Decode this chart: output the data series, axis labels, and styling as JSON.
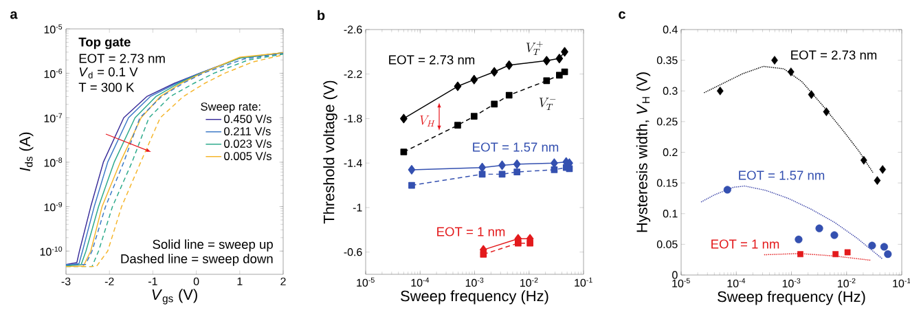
{
  "chart_data": [
    {
      "type": "line",
      "title": "a",
      "xlabel": "*V*$_{gs}$ (V)",
      "ylabel": "*I*$_{ds}$ (A)",
      "legend_title": "Sweep rate:",
      "legend": "right",
      "log": "y",
      "marker": "none",
      "xlim": [
        -3,
        2
      ],
      "ylim": [
        3e-11,
        1e-05
      ],
      "xticks": [
        -3,
        -2,
        -1,
        0,
        1,
        2
      ],
      "yticks": [
        {
          "value": 1e-10,
          "label": "10$^{-10}$"
        },
        {
          "value": 1e-09,
          "label": "10$^{-9}$"
        },
        {
          "value": 1e-08,
          "label": "10$^{-8}$"
        },
        {
          "value": 1e-07,
          "label": "10$^{-7}$"
        },
        {
          "value": 1e-06,
          "label": "10$^{-6}$"
        },
        {
          "value": 1e-05,
          "label": "10$^{-5}$"
        }
      ],
      "annotations": [
        "Top gate",
        "EOT = 2.73 nm",
        "*V*$_{d}$ = 0.1 V",
        "T = 300 K",
        "Solid line = sweep up",
        "Dashed line = sweep down"
      ],
      "series": [
        {
          "name": "0.450 V/s",
          "color": "#3a2d9a",
          "line_style": "solid",
          "x": [
            -3,
            -2.75,
            -2.69,
            -2.43,
            -2.14,
            -1.67,
            -1.14,
            -0.5,
            0.07,
            1,
            2
          ],
          "values": [
            5e-11,
            5.5e-11,
            1e-10,
            1e-09,
            1e-08,
            1e-07,
            3e-07,
            6e-07,
            1e-06,
            2.2e-06,
            2.9e-06
          ]
        },
        {
          "name": "0.211 V/s",
          "color": "#3b78c6",
          "line_style": "solid",
          "x": [
            -3,
            -2.7,
            -2.62,
            -2.35,
            -2.04,
            -1.56,
            -1.06,
            -0.45,
            0.08,
            1,
            2
          ],
          "values": [
            4.8e-11,
            5.2e-11,
            1e-10,
            1e-09,
            1e-08,
            1e-07,
            3e-07,
            6e-07,
            1e-06,
            2.2e-06,
            2.9e-06
          ]
        },
        {
          "name": "0.023 V/s",
          "color": "#2aa98a",
          "line_style": "solid",
          "x": [
            -3,
            -2.65,
            -2.54,
            -2.25,
            -1.89,
            -1.41,
            -0.93,
            -0.4,
            0.1,
            1,
            2
          ],
          "values": [
            4.6e-11,
            5e-11,
            1e-10,
            1e-09,
            1e-08,
            1e-07,
            3e-07,
            6e-07,
            1e-06,
            2.2e-06,
            2.9e-06
          ]
        },
        {
          "name": "0.005 V/s",
          "color": "#f5b52a",
          "line_style": "solid",
          "x": [
            -3,
            -2.6,
            -2.43,
            -2.17,
            -1.75,
            -1.27,
            -0.83,
            -0.35,
            0.12,
            1,
            2
          ],
          "values": [
            4.5e-11,
            4.6e-11,
            1e-10,
            1e-09,
            1e-08,
            1e-07,
            3e-07,
            6e-07,
            1e-06,
            2.3e-06,
            2.9e-06
          ]
        },
        {
          "color": "#3b78c6",
          "line_style": "dashed",
          "x": [
            -3,
            -2.55,
            -2.4,
            -2.09,
            -1.67,
            -1.3,
            -0.8,
            -0.3,
            0.15,
            1.1,
            2
          ],
          "values": [
            5e-11,
            5e-11,
            1e-10,
            1e-09,
            1e-08,
            1e-07,
            3e-07,
            6e-07,
            1e-06,
            2.1e-06,
            2.8e-06
          ]
        },
        {
          "color": "#2aa98a",
          "line_style": "dashed",
          "x": [
            -3,
            -2.4,
            -2.25,
            -1.93,
            -1.48,
            -1.09,
            -0.6,
            -0.05,
            0.4,
            1.2,
            2
          ],
          "values": [
            4.5e-11,
            4.5e-11,
            1e-10,
            1e-09,
            1e-08,
            1e-07,
            3e-07,
            6e-07,
            1e-06,
            2e-06,
            2.7e-06
          ]
        },
        {
          "color": "#f5b52a",
          "line_style": "dashed",
          "x": [
            -3,
            -2.3,
            -2.04,
            -1.72,
            -1.28,
            -0.83,
            -0.3,
            0.2,
            0.65,
            1.3,
            2
          ],
          "values": [
            4.5e-11,
            4.5e-11,
            1e-10,
            1e-09,
            1e-08,
            1e-07,
            3e-07,
            6e-07,
            1e-06,
            1.8e-06,
            2.6e-06
          ]
        }
      ]
    },
    {
      "type": "line",
      "title": "b",
      "xlabel": "Sweep frequency (Hz)",
      "ylabel": "Threshold voltage (V)",
      "log": "x",
      "xlim": [
        1e-05,
        0.1
      ],
      "ylim": [
        -0.4,
        -2.6
      ],
      "xticks": [
        {
          "value": 1e-05,
          "label": "10$^{-5}$"
        },
        {
          "value": 0.0001,
          "label": "10$^{-4}$"
        },
        {
          "value": 0.001,
          "label": "10$^{-3}$"
        },
        {
          "value": 0.01,
          "label": "10$^{-2}$"
        },
        {
          "value": 0.1,
          "label": "10$^{-1}$"
        }
      ],
      "yticks": [
        -2.6,
        -2.2,
        -1.8,
        -1.4,
        -1,
        -0.6
      ],
      "annotations": [
        "EOT = 2.73 nm",
        "EOT = 1.57 nm",
        "EOT = 1 nm",
        "V_T^+",
        "V_T^-",
        "V_H"
      ],
      "series": [
        {
          "color": "#000000",
          "line_style": "solid",
          "marker": "diamond",
          "x": [
            5e-05,
            0.00049,
            0.00098,
            0.0023,
            0.0043,
            0.021,
            0.036,
            0.045
          ],
          "values": [
            -1.8,
            -2.09,
            -2.15,
            -2.22,
            -2.28,
            -2.32,
            -2.34,
            -2.4
          ]
        },
        {
          "color": "#000000",
          "line_style": "dashed",
          "marker": "square",
          "x": [
            5e-05,
            0.00049,
            0.00098,
            0.0023,
            0.0043,
            0.021,
            0.036,
            0.045
          ],
          "values": [
            -1.5,
            -1.74,
            -1.82,
            -1.93,
            -2.01,
            -2.14,
            -2.19,
            -2.22
          ]
        },
        {
          "color": "#3450b0",
          "line_style": "solid",
          "marker": "diamond",
          "x": [
            7e-05,
            0.00138,
            0.0032,
            0.006,
            0.029,
            0.048,
            0.055
          ],
          "values": [
            -1.34,
            -1.36,
            -1.38,
            -1.39,
            -1.4,
            -1.41,
            -1.4
          ]
        },
        {
          "color": "#3450b0",
          "line_style": "dashed",
          "marker": "square",
          "x": [
            7e-05,
            0.00138,
            0.0032,
            0.006,
            0.029,
            0.048,
            0.055
          ],
          "values": [
            -1.2,
            -1.3,
            -1.3,
            -1.32,
            -1.34,
            -1.36,
            -1.35
          ]
        },
        {
          "color": "#e31a1c",
          "line_style": "solid",
          "marker": "diamond",
          "x": [
            0.00145,
            0.0063,
            0.0104
          ],
          "values": [
            -0.62,
            -0.72,
            -0.72
          ]
        },
        {
          "color": "#e31a1c",
          "line_style": "dashed",
          "marker": "square",
          "x": [
            0.00145,
            0.0063,
            0.0104
          ],
          "values": [
            -0.58,
            -0.68,
            -0.68
          ]
        }
      ]
    },
    {
      "type": "scatter",
      "title": "c",
      "xlabel": "Sweep frequency (Hz)",
      "ylabel": "Hysteresis width, *V*$_{H}$ (V)",
      "log": "x",
      "xlim": [
        1e-05,
        0.1
      ],
      "ylim": [
        0,
        0.4
      ],
      "xticks": [
        {
          "value": 1e-05,
          "label": "10$^{-5}$"
        },
        {
          "value": 0.0001,
          "label": "10$^{-4}$"
        },
        {
          "value": 0.001,
          "label": "10$^{-3}$"
        },
        {
          "value": 0.01,
          "label": "10$^{-2}$"
        },
        {
          "value": 0.1,
          "label": "10$^{-1}$"
        }
      ],
      "yticks": [
        0,
        0.05,
        0.1,
        0.15,
        0.2,
        0.25,
        0.3,
        0.35,
        0.4
      ],
      "annotations": [
        "EOT = 2.73 nm",
        "EOT = 1.57 nm",
        "EOT = 1 nm"
      ],
      "series": [
        {
          "color": "#000000",
          "marker": "diamond",
          "x": [
            5.1e-05,
            0.000495,
            0.00098,
            0.0023,
            0.0043,
            0.0205,
            0.036,
            0.045
          ],
          "values": [
            0.3,
            0.35,
            0.331,
            0.294,
            0.266,
            0.187,
            0.154,
            0.172
          ]
        },
        {
          "color": "#3450b0",
          "marker": "circle",
          "x": [
            6.9e-05,
            0.00135,
            0.0032,
            0.006,
            0.029,
            0.048,
            0.056
          ],
          "values": [
            0.139,
            0.058,
            0.076,
            0.065,
            0.048,
            0.046,
            0.034
          ]
        },
        {
          "color": "#e31a1c",
          "marker": "square",
          "x": [
            0.00145,
            0.0063,
            0.0104
          ],
          "values": [
            0.034,
            0.034,
            0.037
          ]
        },
        {
          "type": "line",
          "color": "#000000",
          "line_style": "dotted",
          "marker": "none",
          "x": [
            2.6e-05,
            0.00013,
            0.00031,
            0.00073,
            0.00155,
            0.0037,
            0.0087,
            0.017,
            0.03
          ],
          "values": [
            0.297,
            0.328,
            0.34,
            0.336,
            0.315,
            0.276,
            0.235,
            0.201,
            0.167
          ]
        },
        {
          "type": "line",
          "color": "#3b44a8",
          "line_style": "dotted",
          "marker": "none",
          "x": [
            2.3e-05,
            4.1e-05,
            8.9e-05,
            0.000143,
            0.00034,
            0.00087,
            0.0023,
            0.006,
            0.0155,
            0.045
          ],
          "values": [
            0.119,
            0.131,
            0.143,
            0.145,
            0.138,
            0.125,
            0.107,
            0.086,
            0.06,
            0.026
          ]
        },
        {
          "type": "line",
          "color": "#e31a1c",
          "line_style": "dotted",
          "marker": "none",
          "x": [
            0.00032,
            0.0014,
            0.006,
            0.0275
          ],
          "values": [
            0.033,
            0.035,
            0.031,
            0.024
          ]
        }
      ]
    }
  ]
}
